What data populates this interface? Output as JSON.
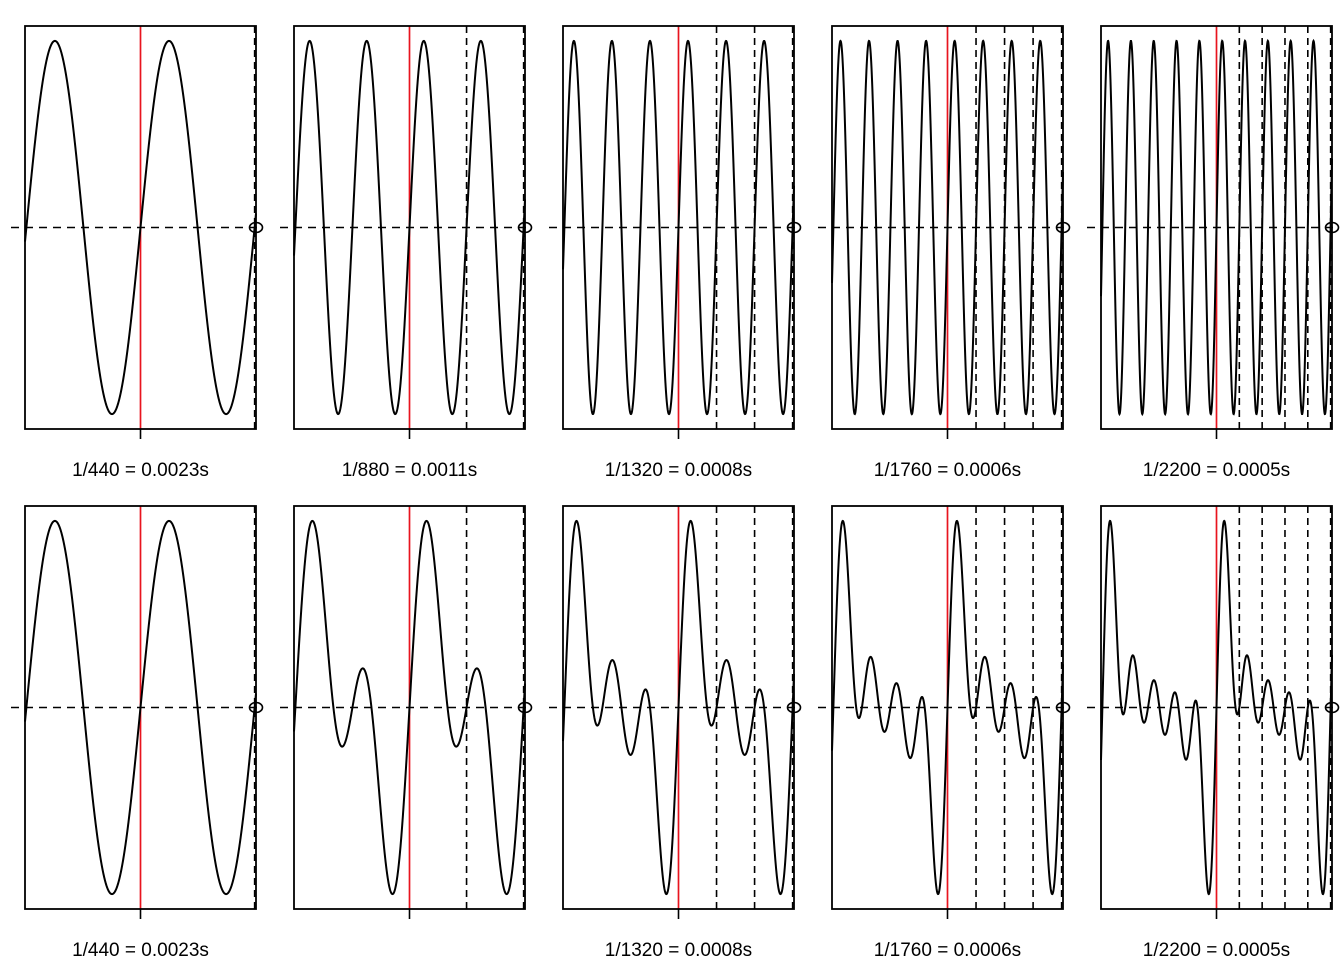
{
  "figure": {
    "rows": [
      "pure-harmonics",
      "cumulative-sum"
    ]
  },
  "chart_data": [
    {
      "type": "line",
      "row": 1,
      "col": 1,
      "harmonic": 1,
      "label": "1/440 = 0.0023s",
      "series": "sin(2*pi*440*t)",
      "xlim": [
        -0.0023,
        0.0023
      ],
      "ylim": [
        -1.08,
        1.08
      ],
      "period_marker_s": 0.0023,
      "zero_line": true
    },
    {
      "type": "line",
      "row": 1,
      "col": 2,
      "harmonic": 2,
      "label": "1/880 = 0.0011s",
      "series": "sin(2*pi*880*t)",
      "xlim": [
        -0.0023,
        0.0023
      ],
      "ylim": [
        -1.08,
        1.08
      ],
      "period_marker_s": 0.0011,
      "zero_line": true
    },
    {
      "type": "line",
      "row": 1,
      "col": 3,
      "harmonic": 3,
      "label": "1/1320 = 0.0008s",
      "series": "sin(2*pi*1320*t)",
      "xlim": [
        -0.0023,
        0.0023
      ],
      "ylim": [
        -1.08,
        1.08
      ],
      "period_marker_s": 0.0008,
      "zero_line": true
    },
    {
      "type": "line",
      "row": 1,
      "col": 4,
      "harmonic": 4,
      "label": "1/1760 = 0.0006s",
      "series": "sin(2*pi*1760*t)",
      "xlim": [
        -0.0023,
        0.0023
      ],
      "ylim": [
        -1.08,
        1.08
      ],
      "period_marker_s": 0.0006,
      "zero_line": true
    },
    {
      "type": "line",
      "row": 1,
      "col": 5,
      "harmonic": 5,
      "label": "1/2200 = 0.0005s",
      "series": "sin(2*pi*2200*t)",
      "xlim": [
        -0.0023,
        0.0023
      ],
      "ylim": [
        -1.08,
        1.08
      ],
      "period_marker_s": 0.0005,
      "zero_line": true
    },
    {
      "type": "line",
      "row": 2,
      "col": 1,
      "harmonic": 1,
      "label": "1/440 = 0.0023s",
      "series": "sum of harmonics 1..1",
      "xlim": [
        -0.0023,
        0.0023
      ],
      "ylim": [
        -1.08,
        1.08
      ],
      "period_marker_s": 0.0023,
      "zero_line": true
    },
    {
      "type": "line",
      "row": 2,
      "col": 2,
      "harmonic": 2,
      "label": "",
      "series": "sum of harmonics 1..2",
      "xlim": [
        -0.0023,
        0.0023
      ],
      "ylim": [
        -1.08,
        1.08
      ],
      "period_marker_s": 0.0011,
      "zero_line": true
    },
    {
      "type": "line",
      "row": 2,
      "col": 3,
      "harmonic": 3,
      "label": "1/1320 = 0.0008s",
      "series": "sum of harmonics 1..3",
      "xlim": [
        -0.0023,
        0.0023
      ],
      "ylim": [
        -1.08,
        1.08
      ],
      "period_marker_s": 0.0008,
      "zero_line": true
    },
    {
      "type": "line",
      "row": 2,
      "col": 4,
      "harmonic": 4,
      "label": "1/1760 = 0.0006s",
      "series": "sum of harmonics 1..4",
      "xlim": [
        -0.0023,
        0.0023
      ],
      "ylim": [
        -1.08,
        1.08
      ],
      "period_marker_s": 0.0006,
      "zero_line": true
    },
    {
      "type": "line",
      "row": 2,
      "col": 5,
      "harmonic": 5,
      "label": "1/2200 = 0.0005s",
      "series": "sum of harmonics 1..5",
      "xlim": [
        -0.0023,
        0.0023
      ],
      "ylim": [
        -1.08,
        1.08
      ],
      "period_marker_s": 0.0005,
      "zero_line": true
    }
  ],
  "colors": {
    "curve": "#000000",
    "period_marker": "#e8141e",
    "guides": "#000000",
    "frame": "#000000",
    "background": "#ffffff"
  }
}
